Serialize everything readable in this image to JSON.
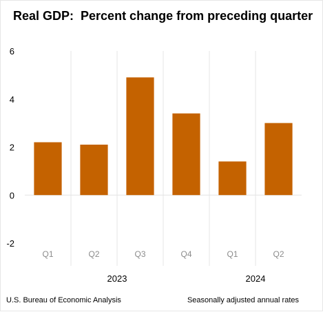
{
  "chart_data": {
    "type": "bar",
    "title": "Real GDP:  Percent change from preceding quarter",
    "categories": [
      "Q1",
      "Q2",
      "Q3",
      "Q4",
      "Q1",
      "Q2"
    ],
    "groups": [
      {
        "label": "2023",
        "categories": [
          "Q1",
          "Q2",
          "Q3",
          "Q4"
        ]
      },
      {
        "label": "2024",
        "categories": [
          "Q1",
          "Q2"
        ]
      }
    ],
    "values": [
      2.2,
      2.1,
      4.9,
      3.4,
      1.4,
      3.0
    ],
    "ylim": [
      -2,
      6
    ],
    "yticks": [
      -2,
      0,
      2,
      4,
      6
    ],
    "ytick_labels": [
      "-2",
      "0",
      "2",
      "4",
      "6"
    ],
    "xlabel": "",
    "ylabel": "",
    "bar_color": "#c46200",
    "grid": "vertical separators",
    "legend": "none"
  },
  "footer": {
    "source": "U.S. Bureau of Economic Analysis",
    "note": "Seasonally adjusted annual rates"
  }
}
